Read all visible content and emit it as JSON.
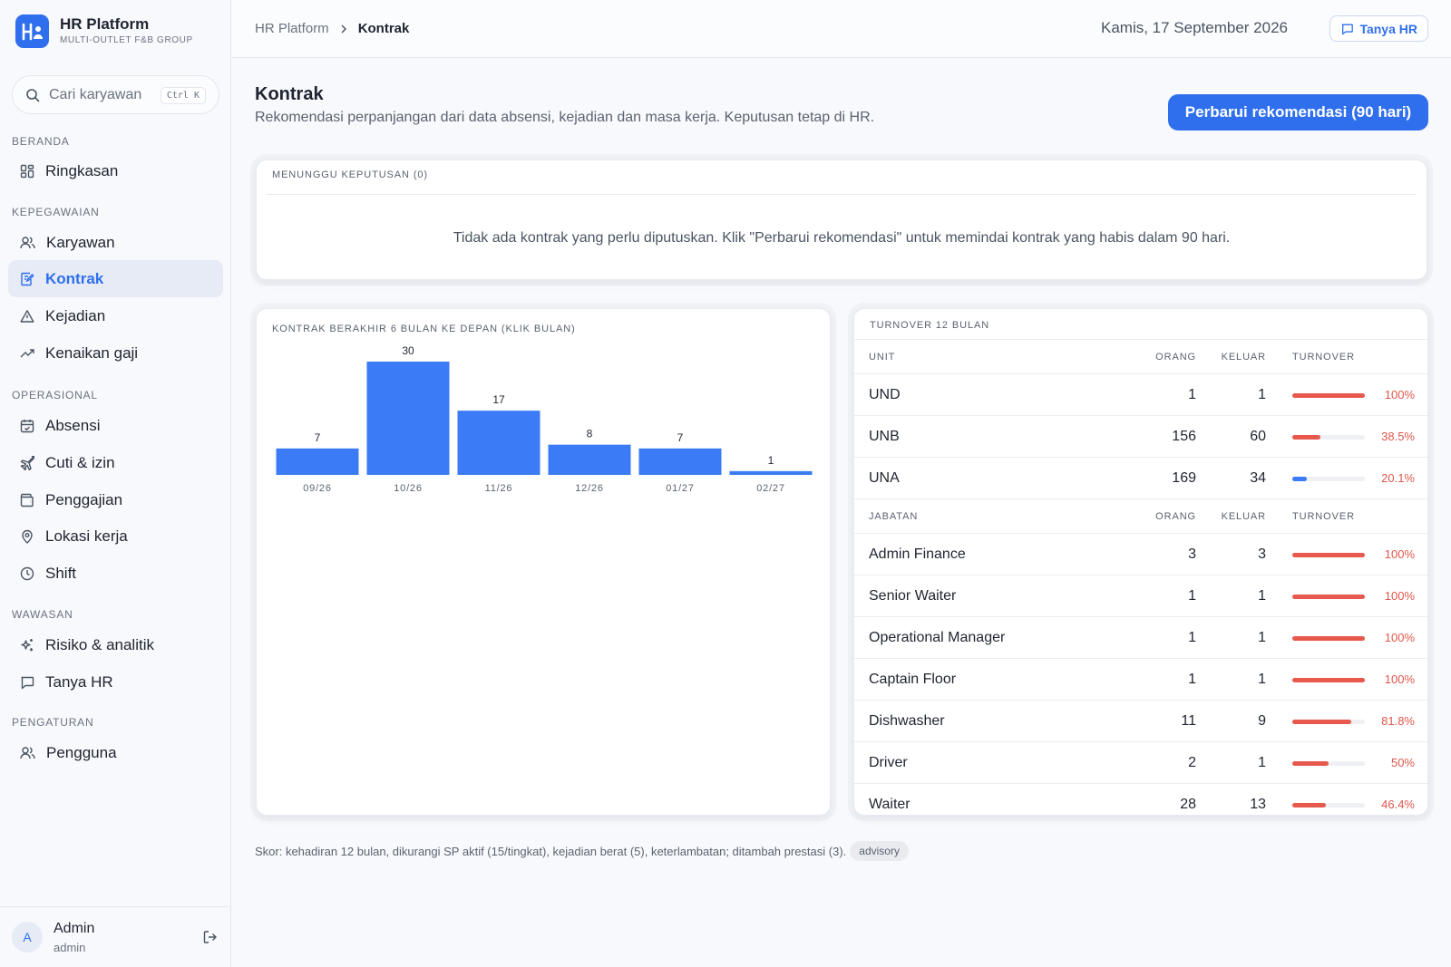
{
  "brand": {
    "title": "HR Platform",
    "subtitle": "MULTI-OUTLET F&B GROUP"
  },
  "search": {
    "label": "Cari karyawan",
    "shortcut": "Ctrl K"
  },
  "nav": {
    "sections": [
      "BERANDA",
      "KEPEGAWAIAN",
      "OPERASIONAL",
      "WAWASAN",
      "PENGATURAN"
    ],
    "items": [
      "Ringkasan",
      "Karyawan",
      "Kontrak",
      "Kejadian",
      "Kenaikan gaji",
      "Absensi",
      "Cuti & izin",
      "Penggajian",
      "Lokasi kerja",
      "Shift",
      "Risiko & analitik",
      "Tanya HR",
      "Pengguna"
    ],
    "active": "Kontrak"
  },
  "user": {
    "initial": "A",
    "name": "Admin",
    "role": "admin"
  },
  "topbar": {
    "crumb_root": "HR Platform",
    "crumb_current": "Kontrak",
    "date": "Kamis, 17 September 2026",
    "ask_label": "Tanya HR"
  },
  "page": {
    "title": "Kontrak",
    "description": "Rekomendasi perpanjangan dari data absensi, kejadian dan masa kerja. Keputusan tetap di HR.",
    "refresh_label": "Perbarui rekomendasi (90 hari)"
  },
  "pending": {
    "title": "MENUNGGU KEPUTUSAN (0)",
    "empty": "Tidak ada kontrak yang perlu diputuskan. Klik \"Perbarui rekomendasi\" untuk memindai kontrak yang habis dalam 90 hari."
  },
  "chart_data": {
    "type": "bar",
    "title": "KONTRAK BERAKHIR 6 BULAN KE DEPAN (KLIK BULAN)",
    "categories": [
      "09/26",
      "10/26",
      "11/26",
      "12/26",
      "01/27",
      "02/27"
    ],
    "values": [
      7,
      30,
      17,
      8,
      7,
      1
    ],
    "ylim": [
      0,
      30
    ],
    "color": "#3b7bf6",
    "grid": false
  },
  "turnover": {
    "title": "TURNOVER 12 BULAN",
    "headers": {
      "unit": "UNIT",
      "jabatan": "JABATAN",
      "orang": "ORANG",
      "keluar": "KELUAR",
      "turnover": "TURNOVER"
    },
    "units": [
      {
        "name": "UND",
        "orang": "1",
        "keluar": "1",
        "pct": "100%",
        "rate": 1.0
      },
      {
        "name": "UNB",
        "orang": "156",
        "keluar": "60",
        "pct": "38.5%",
        "rate": 0.385
      },
      {
        "name": "UNA",
        "orang": "169",
        "keluar": "34",
        "pct": "20.1%",
        "rate": 0.201
      }
    ],
    "positions": [
      {
        "name": "Admin Finance",
        "orang": "3",
        "keluar": "3",
        "pct": "100%",
        "rate": 1.0
      },
      {
        "name": "Senior Waiter",
        "orang": "1",
        "keluar": "1",
        "pct": "100%",
        "rate": 1.0
      },
      {
        "name": "Operational Manager",
        "orang": "1",
        "keluar": "1",
        "pct": "100%",
        "rate": 1.0
      },
      {
        "name": "Captain Floor",
        "orang": "1",
        "keluar": "1",
        "pct": "100%",
        "rate": 1.0
      },
      {
        "name": "Dishwasher",
        "orang": "11",
        "keluar": "9",
        "pct": "81.8%",
        "rate": 0.818
      },
      {
        "name": "Driver",
        "orang": "2",
        "keluar": "1",
        "pct": "50%",
        "rate": 0.5
      },
      {
        "name": "Waiter",
        "orang": "28",
        "keluar": "13",
        "pct": "46.4%",
        "rate": 0.464
      }
    ],
    "colors": {
      "high": "#e8584c",
      "low": "#3b7bf6",
      "track": "#eef0f4"
    }
  },
  "footnote": {
    "text": "Skor: kehadiran 12 bulan, dikurangi SP aktif (15/tingkat), kejadian berat (5), keterlambatan; ditambah prestasi (3).",
    "badge": "advisory"
  }
}
